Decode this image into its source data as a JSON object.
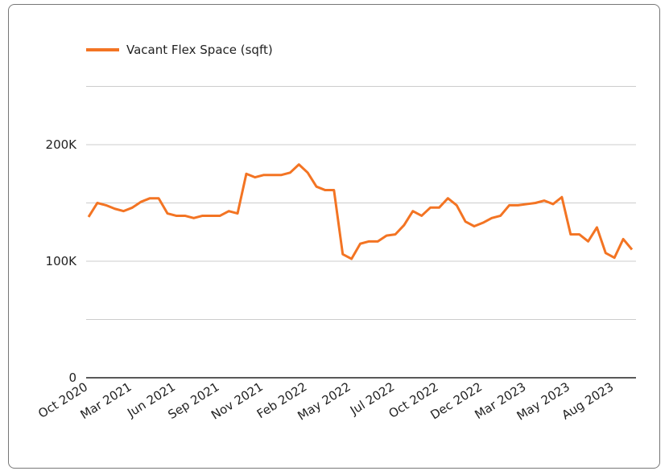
{
  "chart_data": {
    "type": "line",
    "categories": [
      "Oct 2020",
      null,
      null,
      null,
      null,
      "Mar 2021",
      null,
      null,
      null,
      null,
      "Jun 2021",
      null,
      null,
      null,
      null,
      "Sep 2021",
      null,
      null,
      null,
      null,
      "Nov 2021",
      null,
      null,
      null,
      null,
      "Feb 2022",
      null,
      null,
      null,
      null,
      "May 2022",
      null,
      null,
      null,
      null,
      "Jul 2022",
      null,
      null,
      null,
      null,
      "Oct 2022",
      null,
      null,
      null,
      null,
      "Dec 2022",
      null,
      null,
      null,
      null,
      "Mar 2023",
      null,
      null,
      null,
      null,
      "May 2023",
      null,
      null,
      null,
      null,
      "Aug 2023",
      null,
      null
    ],
    "series": [
      {
        "name": "Vacant Flex Space (sqft)",
        "color": "#f37423",
        "values": [
          138000,
          150000,
          148000,
          145000,
          143000,
          146000,
          151000,
          154000,
          154000,
          141000,
          139000,
          139000,
          137000,
          139000,
          139000,
          139000,
          143000,
          141000,
          175000,
          172000,
          174000,
          174000,
          174000,
          176000,
          183000,
          176000,
          164000,
          161000,
          161000,
          106000,
          102000,
          115000,
          117000,
          117000,
          122000,
          123000,
          131000,
          143000,
          139000,
          146000,
          146000,
          154000,
          148000,
          134000,
          130000,
          133000,
          137000,
          139000,
          148000,
          148000,
          149000,
          150000,
          152000,
          149000,
          155000,
          123000,
          123000,
          117000,
          129000,
          107000,
          103000,
          119000,
          110000
        ]
      }
    ],
    "ylim": [
      0,
      250000
    ],
    "yticks": [
      0,
      {
        "value": 100000,
        "label": "100K"
      },
      {
        "value": 200000,
        "label": "200K"
      }
    ],
    "minor_yticks": [
      50000,
      150000,
      250000
    ],
    "grid": true,
    "legend": "top-left"
  }
}
